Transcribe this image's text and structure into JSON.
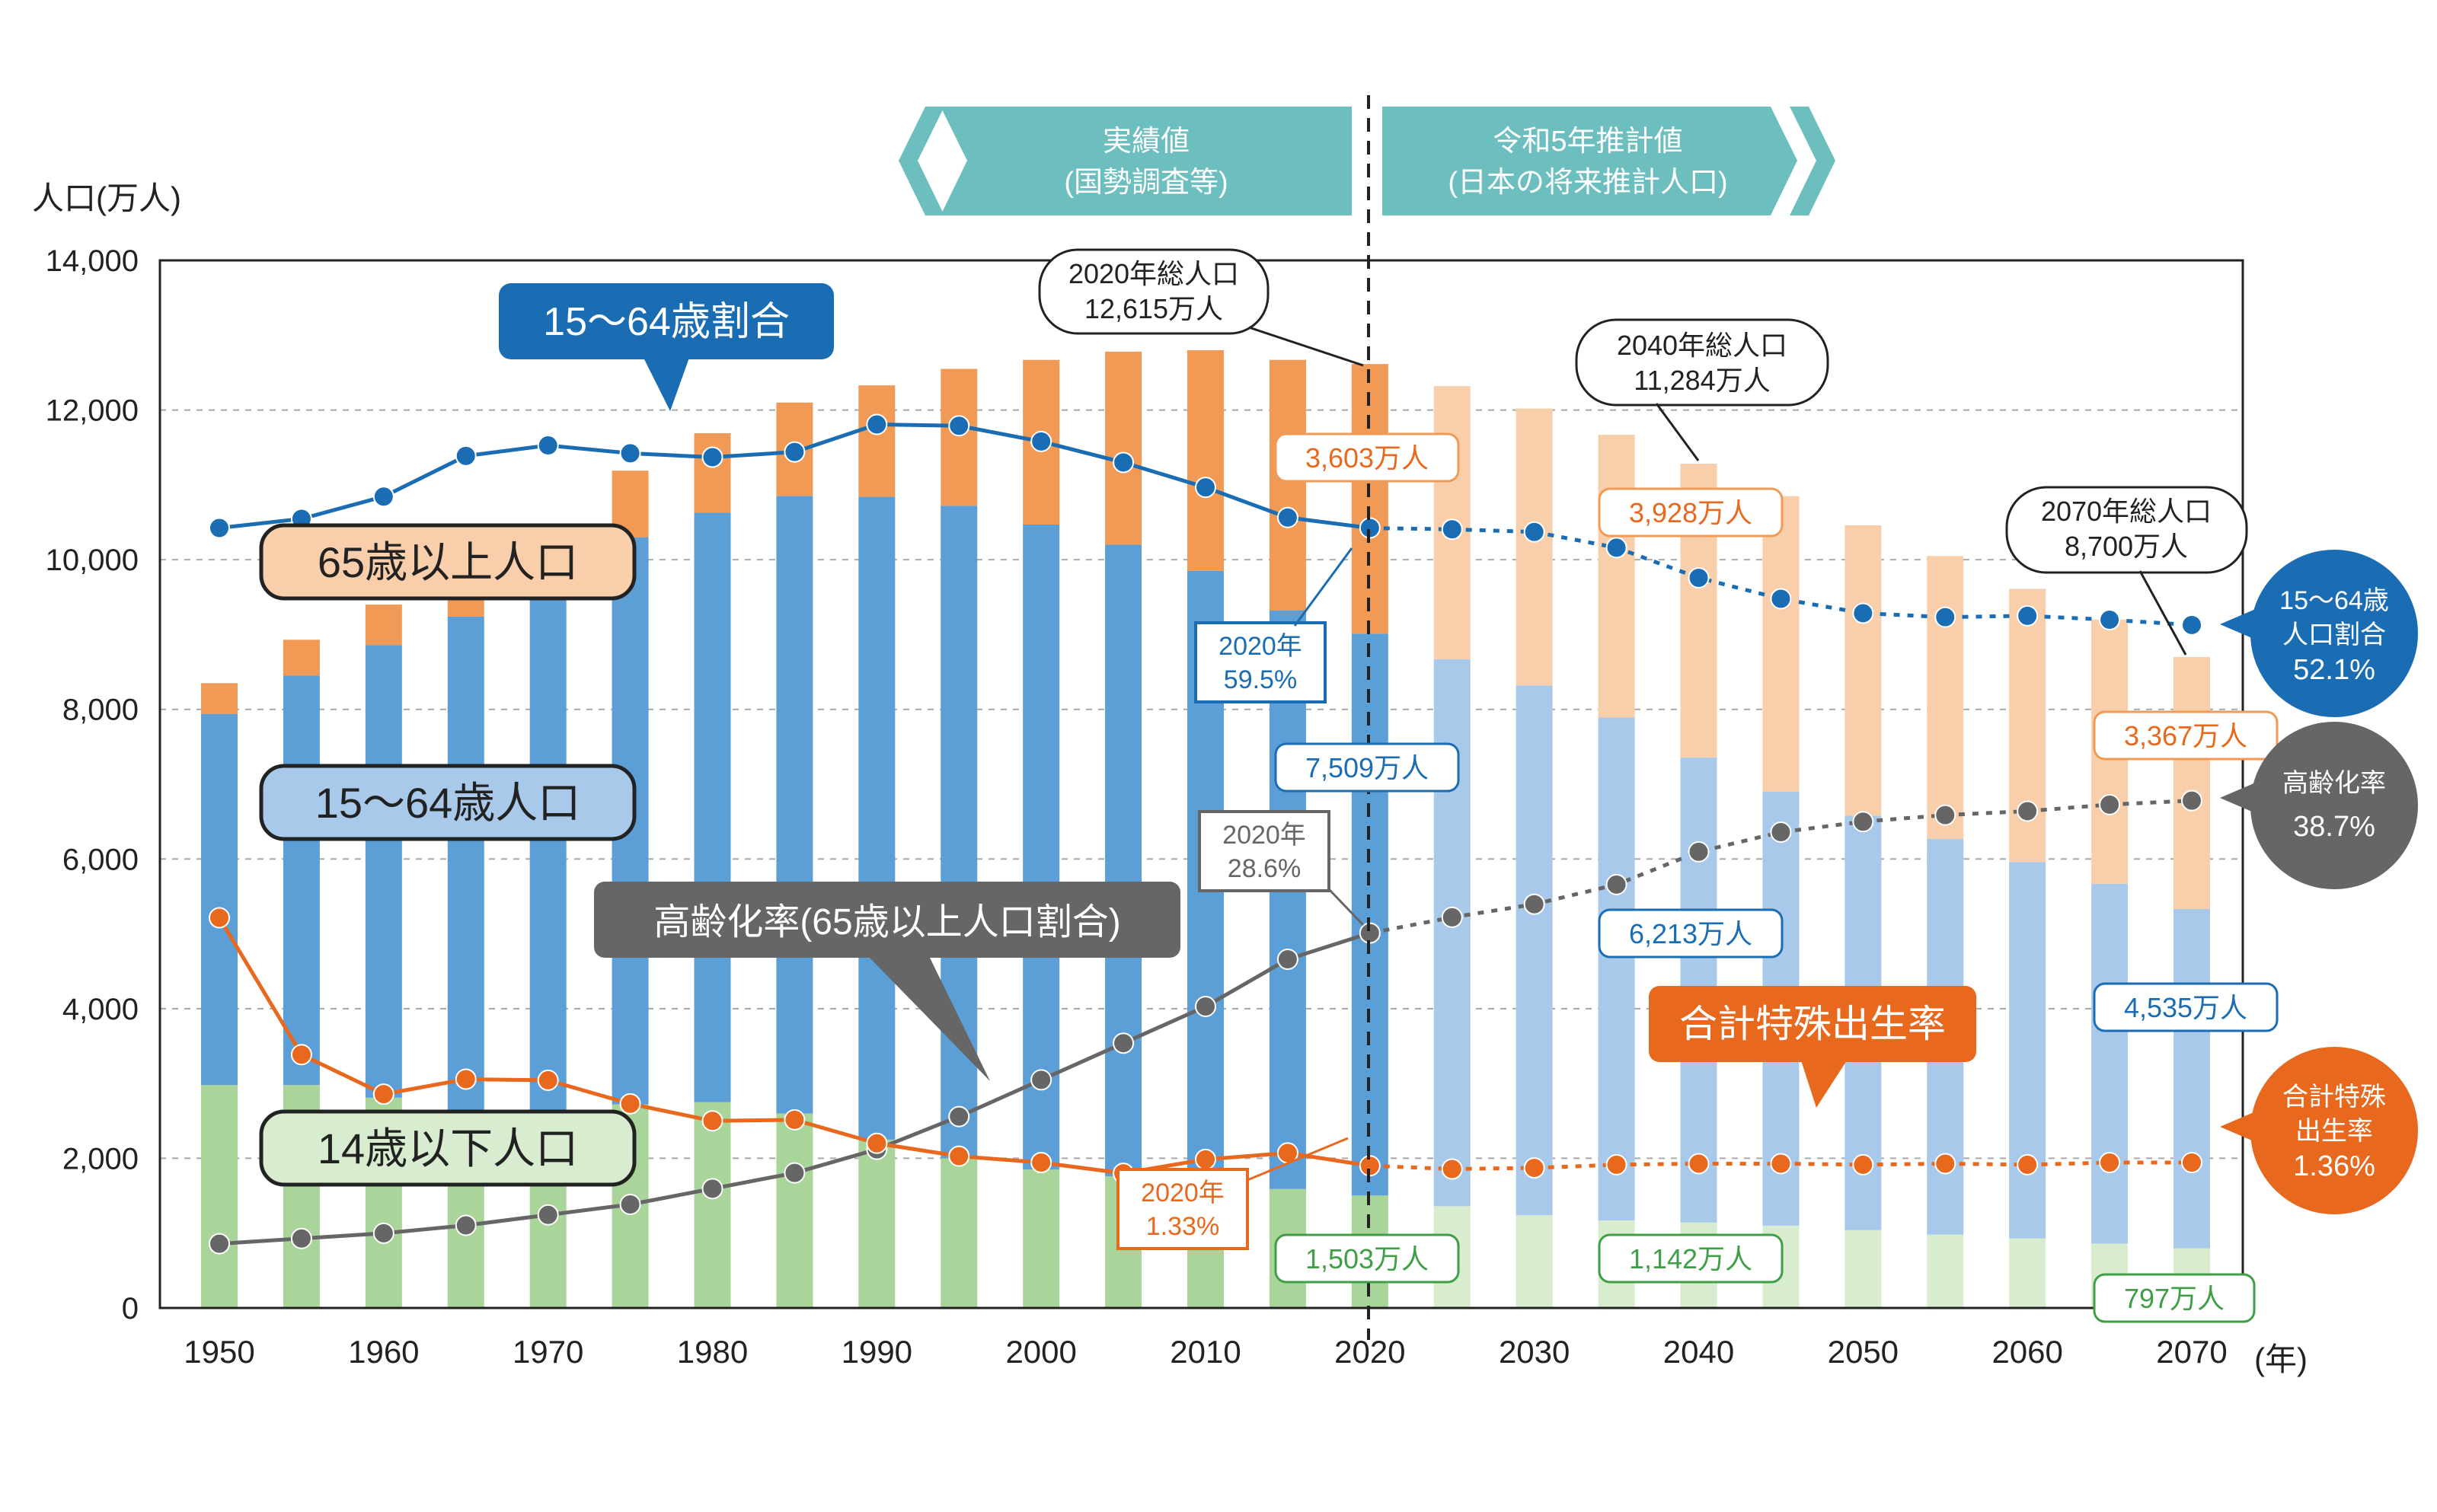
{
  "chart_data": {
    "type": "bar",
    "title": "",
    "ylabel": "人口(万人)",
    "xlabel_suffix": "(年)",
    "ylim": [
      0,
      14000
    ],
    "yticks": [
      "0",
      "2,000",
      "4,000",
      "6,000",
      "8,000",
      "10,000",
      "12,000",
      "14,000"
    ],
    "yticks_values": [
      0,
      2000,
      4000,
      6000,
      8000,
      10000,
      12000,
      14000
    ],
    "x_years": [
      1950,
      1955,
      1960,
      1965,
      1970,
      1975,
      1980,
      1985,
      1990,
      1995,
      2000,
      2005,
      2010,
      2015,
      2020,
      2025,
      2030,
      2035,
      2040,
      2045,
      2050,
      2055,
      2060,
      2065,
      2070
    ],
    "xtick_labels": [
      "1950",
      "1960",
      "1970",
      "1980",
      "1990",
      "2000",
      "2010",
      "2020",
      "2030",
      "2040",
      "2050",
      "2060",
      "2070"
    ],
    "projection_start_year": 2025,
    "series": [
      {
        "name": "14歳以下人口",
        "color": "#a9d59a",
        "proj_color": "#d8ecd0",
        "values": [
          2980,
          2980,
          2810,
          2550,
          2510,
          2720,
          2750,
          2600,
          2250,
          2000,
          1850,
          1760,
          1680,
          1590,
          1503,
          1360,
          1240,
          1170,
          1142,
          1100,
          1040,
          980,
          930,
          860,
          797
        ]
      },
      {
        "name": "15～64歳人口",
        "color": "#5b9fd6",
        "proj_color": "#a8c9ea",
        "values": [
          4960,
          5470,
          6050,
          6690,
          7210,
          7580,
          7880,
          8250,
          8590,
          8720,
          8620,
          8440,
          8170,
          7730,
          7509,
          7310,
          7080,
          6720,
          6213,
          5800,
          5540,
          5290,
          5030,
          4810,
          4535
        ]
      },
      {
        "name": "65歳以上人口",
        "color": "#f19a55",
        "proj_color": "#f9cfab",
        "values": [
          410,
          480,
          540,
          620,
          740,
          890,
          1060,
          1250,
          1490,
          1830,
          2200,
          2580,
          2950,
          3350,
          3603,
          3650,
          3700,
          3780,
          3928,
          3950,
          3880,
          3780,
          3650,
          3530,
          3367
        ]
      }
    ],
    "lines": [
      {
        "name": "15～64歳割合",
        "color": "#1b6db3",
        "unit": "%",
        "values": [
          59.5,
          60.2,
          61.9,
          65.0,
          65.8,
          65.2,
          64.9,
          65.3,
          67.4,
          67.3,
          66.1,
          64.5,
          62.6,
          60.3,
          59.5,
          59.4,
          59.2,
          58.0,
          55.7,
          54.1,
          53.0,
          52.7,
          52.8,
          52.5,
          52.1
        ]
      },
      {
        "name": "高齢化率(65歳以上人口割合)",
        "color": "#666666",
        "unit": "%",
        "values": [
          4.9,
          5.3,
          5.7,
          6.3,
          7.1,
          7.9,
          9.1,
          10.3,
          12.1,
          14.6,
          17.4,
          20.2,
          23.0,
          26.6,
          28.6,
          29.8,
          30.8,
          32.3,
          34.8,
          36.3,
          37.1,
          37.6,
          37.9,
          38.4,
          38.7
        ]
      },
      {
        "name": "合計特殊出生率",
        "color": "#e8681e",
        "unit": "",
        "values": [
          3.65,
          2.37,
          2.0,
          2.14,
          2.13,
          1.91,
          1.75,
          1.76,
          1.54,
          1.42,
          1.36,
          1.26,
          1.39,
          1.45,
          1.33,
          1.3,
          1.31,
          1.34,
          1.35,
          1.35,
          1.34,
          1.35,
          1.34,
          1.36,
          1.36
        ]
      }
    ],
    "ratio_axis_note": "割合(%)は 12,000万人 = 68.5% の比率で同一軸に描画"
  },
  "headers": {
    "actual": {
      "line1": "実績値",
      "line2": "(国勢調査等)"
    },
    "projection": {
      "line1": "令和5年推計値",
      "line2": "(日本の将来推計人口)"
    }
  },
  "series_labels": {
    "ratio_1564": "15～64歳割合",
    "pop_65": "65歳以上人口",
    "pop_1564": "15～64歳人口",
    "pop_14": "14歳以下人口",
    "aging_rate": "高齢化率(65歳以上人口割合)",
    "tfr": "合計特殊出生率"
  },
  "callouts": {
    "total_2020": {
      "line1": "2020年総人口",
      "line2": "12,615万人"
    },
    "total_2040": {
      "line1": "2040年総人口",
      "line2": "11,284万人"
    },
    "total_2070": {
      "line1": "2070年総人口",
      "line2": "8,700万人"
    },
    "ratio_2020": {
      "line1": "2020年",
      "line2": "59.5%"
    },
    "aging_2020": {
      "line1": "2020年",
      "line2": "28.6%"
    },
    "tfr_2020": {
      "line1": "2020年",
      "line2": "1.33%"
    }
  },
  "value_labels": {
    "o2020": "3,603万人",
    "o2040": "3,928万人",
    "o2070": "3,367万人",
    "w2020": "7,509万人",
    "w2040": "6,213万人",
    "w2070": "4,535万人",
    "c2020": "1,503万人",
    "c2040": "1,142万人",
    "c2070": "797万人"
  },
  "end_circles": {
    "ratio": {
      "line1": "15～64歳",
      "line2": "人口割合",
      "line3": "52.1%"
    },
    "aging": {
      "line1": "高齢化率",
      "line2": "38.7%"
    },
    "tfr": {
      "line1": "合計特殊",
      "line2": "出生率",
      "line3": "1.36%"
    }
  },
  "colors": {
    "blue_dark": "#1b6db3",
    "gray_dark": "#666666",
    "orange_dark": "#e8681e",
    "teal": "#6dbfbf",
    "green_text": "#3f9e46"
  }
}
